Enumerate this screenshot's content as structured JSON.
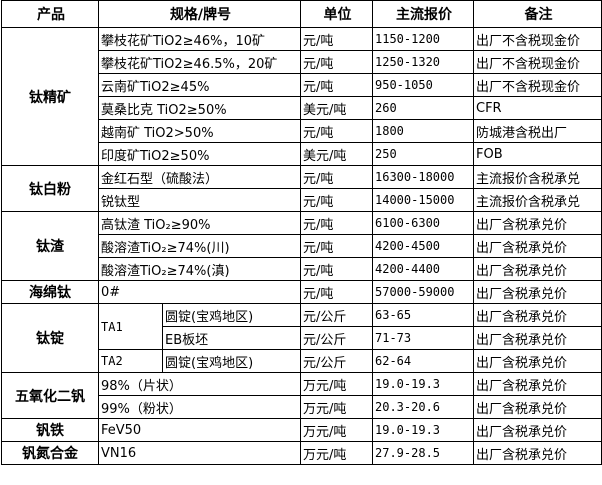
{
  "header": {
    "product": "产品",
    "spec": "规格/牌号",
    "unit": "单位",
    "price": "主流报价",
    "note": "备注"
  },
  "groups": [
    {
      "product": "钛精矿",
      "rows": [
        {
          "spec": "攀枝花矿TiO2≥46%，10矿",
          "unit": "元/吨",
          "price": "1150-1200",
          "note": "出厂不含税现金价"
        },
        {
          "spec": "攀枝花矿TiO2≥46.5%，20矿",
          "unit": "元/吨",
          "price": "1250-1320",
          "note": "出厂不含税现金价"
        },
        {
          "spec": "云南矿TiO2≥45%",
          "unit": "元/吨",
          "price": "950-1050",
          "note": "出厂不含税现金价"
        },
        {
          "spec": "莫桑比克 TiO2≥50%",
          "unit": "美元/吨",
          "price": "260",
          "note": "CFR"
        },
        {
          "spec": "越南矿 TiO2>50%",
          "unit": "元/吨",
          "price": "1800",
          "note": "防城港含税出厂"
        },
        {
          "spec": "印度矿TiO2≥50%",
          "unit": "美元/吨",
          "price": "250",
          "note": "FOB"
        }
      ]
    },
    {
      "product": "钛白粉",
      "rows": [
        {
          "spec": "金红石型（硫酸法）",
          "unit": "元/吨",
          "price": "16300-18000",
          "note": "主流报价含税承兑"
        },
        {
          "spec": "锐钛型",
          "unit": "元/吨",
          "price": "14000-15000",
          "note": "主流报价含税承兑"
        }
      ]
    },
    {
      "product": "钛渣",
      "rows": [
        {
          "spec": "高钛渣 TiO₂≥90%",
          "unit": "元/吨",
          "price": "6100-6300",
          "note": "出厂含税承兑价"
        },
        {
          "spec": "酸溶渣TiO₂≥74%(川)",
          "unit": "元/吨",
          "price": "4200-4500",
          "note": "出厂含税承兑价"
        },
        {
          "spec": "酸溶渣TiO₂≥74%(滇)",
          "unit": "元/吨",
          "price": "4200-4400",
          "note": "出厂含税承兑价"
        }
      ]
    },
    {
      "product": "海绵钛",
      "rows": [
        {
          "spec": "0#",
          "unit": "元/吨",
          "price": "57000-59000",
          "note": "出厂含税承兑价"
        }
      ]
    },
    {
      "product": "钛锭",
      "grades": [
        {
          "grade": "TA1",
          "rows": [
            {
              "form": "圆锭(宝鸡地区)",
              "unit": "元/公斤",
              "price": "63-65",
              "note": "出厂含税承兑价"
            },
            {
              "form": "EB板坯",
              "unit": "元/公斤",
              "price": "71-73",
              "note": "出厂含税承兑价"
            }
          ]
        },
        {
          "grade": "TA2",
          "rows": [
            {
              "form": "圆锭(宝鸡地区)",
              "unit": "元/公斤",
              "price": "62-64",
              "note": "出厂含税承兑价"
            }
          ]
        }
      ]
    },
    {
      "product": "五氧化二钒",
      "rows": [
        {
          "spec": "98%（片状）",
          "unit": "万元/吨",
          "price": "19.0-19.3",
          "note": "出厂含税承兑价"
        },
        {
          "spec": "99%（粉状）",
          "unit": "万元/吨",
          "price": "20.3-20.6",
          "note": "出厂含税承兑价"
        }
      ]
    },
    {
      "product": "钒铁",
      "rows": [
        {
          "spec": "FeV50",
          "unit": "万元/吨",
          "price": "19.0-19.3",
          "note": "出厂含税承兑价"
        }
      ]
    },
    {
      "product": "钒氮合金",
      "rows": [
        {
          "spec": "VN16",
          "unit": "万元/吨",
          "price": "27.9-28.5",
          "note": "出厂含税承兑价"
        }
      ]
    }
  ]
}
